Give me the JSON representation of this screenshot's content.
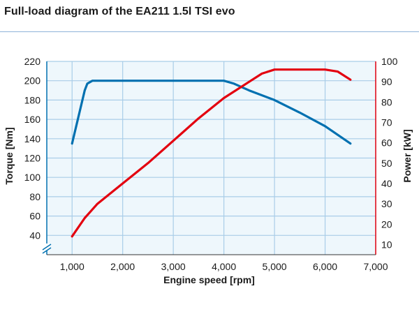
{
  "header": {
    "title": "Full-load diagram of the EA211 1.5l TSI evo"
  },
  "chart_data": {
    "type": "line",
    "title": "Full-load diagram of the EA211 1.5l TSI evo",
    "xlabel": "Engine speed [rpm]",
    "ylabel_left": "Torque [Nm]",
    "ylabel_right": "Power [kW]",
    "xlim": [
      500,
      7000
    ],
    "ylim_left": [
      20,
      220
    ],
    "ylim_right": [
      5,
      100
    ],
    "x_ticks": [
      "1,000",
      "2,000",
      "3,000",
      "4,000",
      "5,000",
      "6,000",
      "7,000"
    ],
    "y_left_ticks": [
      "220",
      "200",
      "180",
      "160",
      "140",
      "120",
      "100",
      "80",
      "60",
      "40"
    ],
    "y_right_ticks": [
      "100",
      "90",
      "80",
      "70",
      "60",
      "50",
      "40",
      "30",
      "20",
      "10"
    ],
    "grid": true,
    "series": [
      {
        "name": "Torque",
        "axis": "left",
        "color": "#0070b0",
        "x": [
          1000,
          1250,
          1300,
          1400,
          2000,
          3000,
          4000,
          4200,
          4500,
          5000,
          5500,
          6000,
          6500
        ],
        "y": [
          135,
          190,
          197,
          200,
          200,
          200,
          200,
          197,
          190,
          180,
          167,
          153,
          135
        ]
      },
      {
        "name": "Power",
        "axis": "right",
        "color": "#e3000f",
        "x": [
          1000,
          1250,
          1500,
          2000,
          2500,
          3000,
          3500,
          4000,
          4500,
          4750,
          5000,
          5250,
          5500,
          6000,
          6250,
          6500
        ],
        "y": [
          14,
          23,
          30,
          40,
          50,
          61,
          72,
          82,
          90,
          94,
          96,
          96,
          96,
          96,
          95,
          91
        ]
      }
    ]
  },
  "colors": {
    "plot_background": "#eef7fc",
    "grid": "#a9cde8",
    "left_axis": "#0070b0",
    "right_axis": "#e3000f",
    "rule": "#8fb3d9"
  }
}
